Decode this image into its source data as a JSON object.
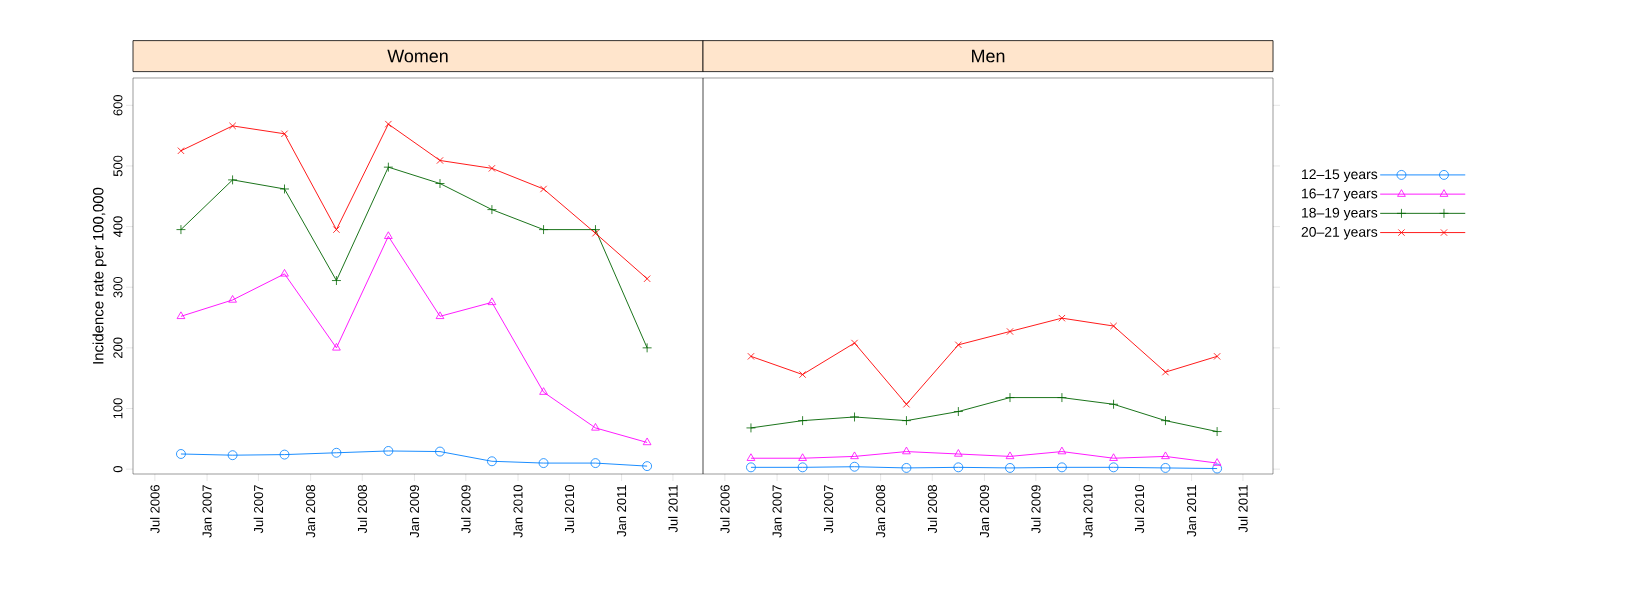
{
  "chart_data": [
    {
      "type": "line",
      "title": "Women",
      "ylabel": "Incidence rate per 100,000",
      "x": [
        "2006-10",
        "2007-04",
        "2007-10",
        "2008-04",
        "2008-10",
        "2009-04",
        "2009-10",
        "2010-04",
        "2010-10",
        "2011-04"
      ],
      "xlim": [
        "2006-04-15",
        "2011-10-15"
      ],
      "xticks": [
        {
          "value": "2006-07",
          "label": "Jul 2006"
        },
        {
          "value": "2007-01",
          "label": "Jan 2007"
        },
        {
          "value": "2007-07",
          "label": "Jul 2007"
        },
        {
          "value": "2008-01",
          "label": "Jan 2008"
        },
        {
          "value": "2008-07",
          "label": "Jul 2008"
        },
        {
          "value": "2009-01",
          "label": "Jan 2009"
        },
        {
          "value": "2009-07",
          "label": "Jul 2009"
        },
        {
          "value": "2010-01",
          "label": "Jan 2010"
        },
        {
          "value": "2010-07",
          "label": "Jul 2010"
        },
        {
          "value": "2011-01",
          "label": "Jan 2011"
        },
        {
          "value": "2011-07",
          "label": "Jul 2011"
        }
      ],
      "ylim": [
        -8,
        645
      ],
      "yticks": [
        0,
        100,
        200,
        300,
        400,
        500,
        600
      ],
      "series": [
        {
          "color": "#0080ff",
          "marker": "circle",
          "values": [
            25,
            23,
            24,
            27,
            30,
            29,
            13,
            10,
            10,
            5
          ]
        },
        {
          "color": "#ff00ff",
          "marker": "triangle",
          "values": [
            252,
            279,
            322,
            200,
            384,
            252,
            275,
            127,
            68,
            44
          ]
        },
        {
          "color": "#006400",
          "marker": "cross",
          "values": [
            395,
            477,
            462,
            311,
            498,
            471,
            428,
            395,
            395,
            200
          ]
        },
        {
          "color": "#ff0000",
          "marker": "x",
          "values": [
            525,
            566,
            553,
            395,
            569,
            509,
            496,
            462,
            389,
            314
          ]
        }
      ]
    },
    {
      "type": "line",
      "title": "Men",
      "x": [
        "2006-10",
        "2007-04",
        "2007-10",
        "2008-04",
        "2008-10",
        "2009-04",
        "2009-10",
        "2010-04",
        "2010-10",
        "2011-04"
      ],
      "xlim": [
        "2006-04-15",
        "2011-10-15"
      ],
      "xticks": [
        {
          "value": "2006-07",
          "label": "Jul 2006"
        },
        {
          "value": "2007-01",
          "label": "Jan 2007"
        },
        {
          "value": "2007-07",
          "label": "Jul 2007"
        },
        {
          "value": "2008-01",
          "label": "Jan 2008"
        },
        {
          "value": "2008-07",
          "label": "Jul 2008"
        },
        {
          "value": "2009-01",
          "label": "Jan 2009"
        },
        {
          "value": "2009-07",
          "label": "Jul 2009"
        },
        {
          "value": "2010-01",
          "label": "Jan 2010"
        },
        {
          "value": "2010-07",
          "label": "Jul 2010"
        },
        {
          "value": "2011-01",
          "label": "Jan 2011"
        },
        {
          "value": "2011-07",
          "label": "Jul 2011"
        }
      ],
      "ylim": [
        -8,
        645
      ],
      "yticks": [
        0,
        100,
        200,
        300,
        400,
        500,
        600
      ],
      "tick_labels": "x",
      "legend": "right",
      "series": [
        {
          "name": "12–15 years",
          "color": "#0080ff",
          "marker": "circle",
          "values": [
            3,
            3,
            4,
            2,
            3,
            2,
            3,
            3,
            2,
            1
          ]
        },
        {
          "name": "16–17 years",
          "color": "#ff00ff",
          "marker": "triangle",
          "values": [
            18,
            18,
            21,
            29,
            25,
            21,
            29,
            18,
            21,
            10
          ]
        },
        {
          "name": "18–19 years",
          "color": "#006400",
          "marker": "cross",
          "values": [
            68,
            80,
            86,
            80,
            95,
            118,
            118,
            107,
            80,
            62
          ]
        },
        {
          "name": "20–21 years",
          "color": "#ff0000",
          "marker": "x",
          "values": [
            186,
            156,
            208,
            107,
            205,
            227,
            249,
            236,
            160,
            186
          ]
        }
      ]
    }
  ]
}
